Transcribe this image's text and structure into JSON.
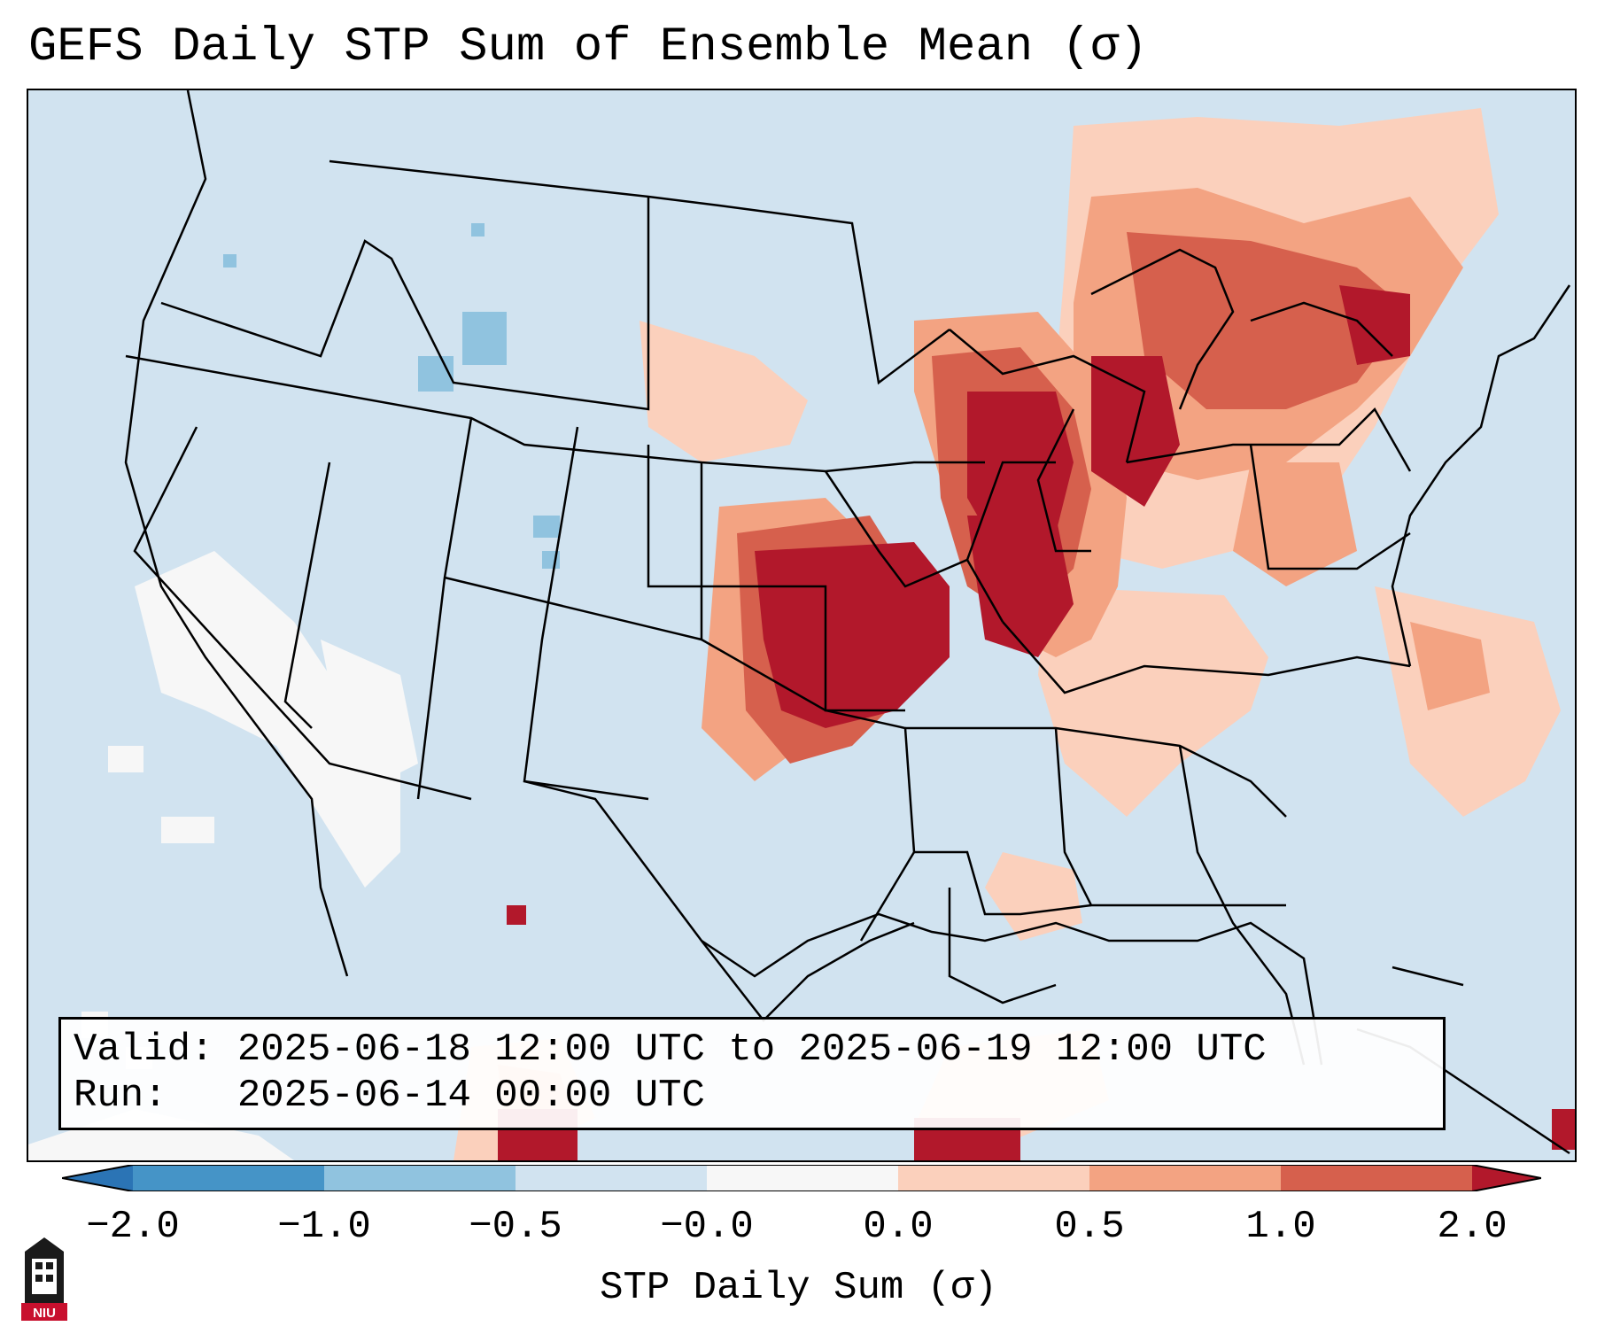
{
  "map": {
    "title": "GEFS Daily STP Sum of Ensemble Mean (σ)",
    "projection_region": "Contiguous United States",
    "valid_label": "Valid:",
    "valid_value": "2025-06-18 12:00 UTC to 2025-06-19 12:00 UTC",
    "run_label": "Run:  ",
    "run_value": "2025-06-14 00:00 UTC"
  },
  "colorbar": {
    "label": "STP Daily Sum (σ)",
    "ticks": [
      "−2.0",
      "−1.0",
      "−0.5",
      "−0.0",
      "0.0",
      "0.5",
      "1.0",
      "2.0"
    ],
    "colors": {
      "extend_low": "#2b74b5",
      "bin_m2_m1": "#4594c7",
      "bin_m1_m05": "#90c3df",
      "bin_m05_0": "#d1e3f0",
      "bin_zero": "#f7f7f7",
      "bin_0_05": "#fbd0bc",
      "bin_05_1": "#f3a382",
      "bin_1_2": "#d6604d",
      "extend_high": "#b2182b"
    }
  },
  "logo": {
    "text": "NIU"
  }
}
